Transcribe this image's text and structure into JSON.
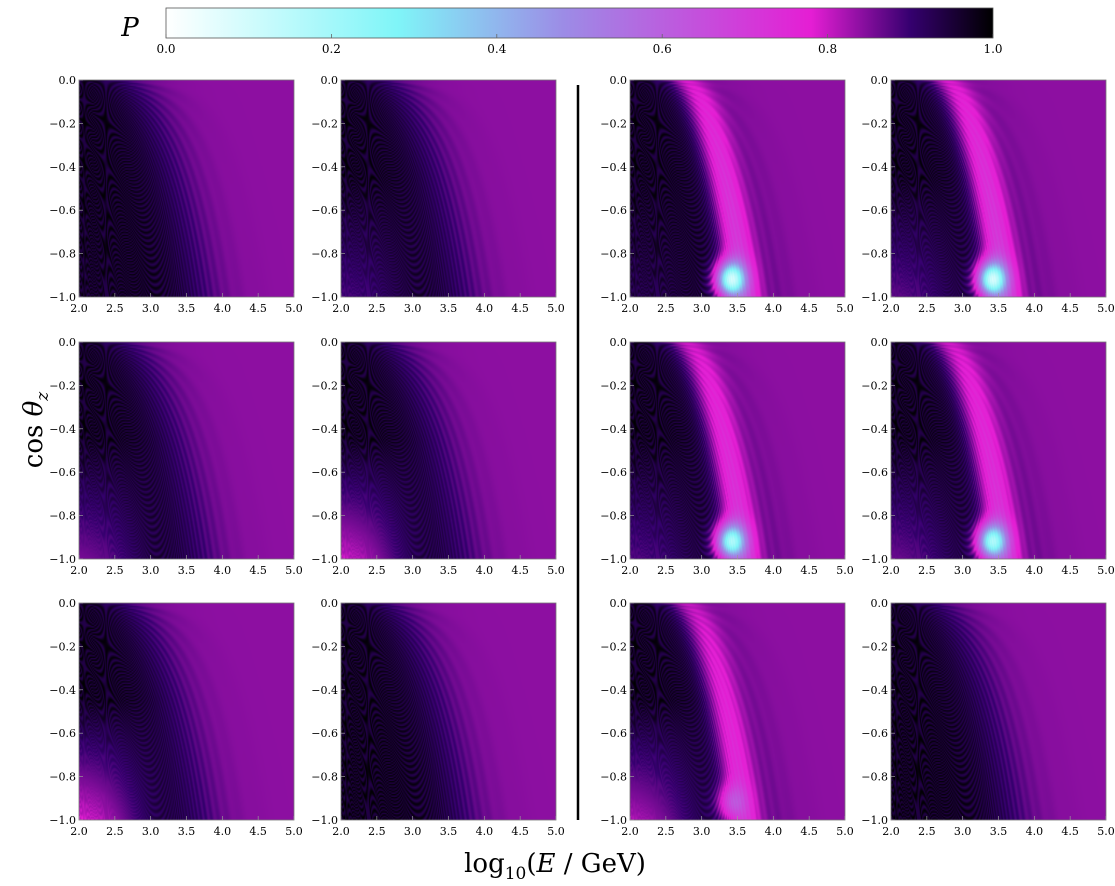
{
  "chart_data": {
    "type": "heatmap",
    "colorbar": {
      "label": "P",
      "ticks": [
        "0.0",
        "0.2",
        "0.4",
        "0.6",
        "0.8",
        "1.0"
      ],
      "range": [
        0,
        1
      ],
      "colors": [
        "#ffffff",
        "#7ff5f8",
        "#9c8ce6",
        "#e51ed4",
        "#35006f",
        "#000000"
      ]
    },
    "xlabel": "log₁₀(E / GeV)",
    "ylabel": "cos θz",
    "xlabel_parts": {
      "pre": "log",
      "sub": "10",
      "open": "(",
      "var": "E",
      "post": " / GeV)"
    },
    "ylabel_parts": {
      "pre": "cos ",
      "var": "θ",
      "sub": "z"
    },
    "x_ticks": [
      "2.0",
      "2.5",
      "3.0",
      "3.5",
      "4.0",
      "4.5",
      "5.0"
    ],
    "y_ticks": [
      "0.0",
      "-0.2",
      "-0.4",
      "-0.6",
      "-0.8",
      "-1.0"
    ],
    "xlim": [
      2.0,
      5.0
    ],
    "ylim": [
      -1.0,
      0.0
    ],
    "layout": {
      "rows": 3,
      "cols": 4,
      "separator_after_col": 2
    },
    "panels": [
      {
        "row": 1,
        "col": 1,
        "lowE_pink": 0.05,
        "resonance": 0.0,
        "band_pink": 0.0
      },
      {
        "row": 1,
        "col": 2,
        "lowE_pink": 0.45,
        "resonance": 0.0,
        "band_pink": 0.0
      },
      {
        "row": 1,
        "col": 3,
        "lowE_pink": 0.2,
        "resonance": 1.0,
        "band_pink": 1.0
      },
      {
        "row": 1,
        "col": 4,
        "lowE_pink": 0.55,
        "resonance": 1.0,
        "band_pink": 1.0
      },
      {
        "row": 2,
        "col": 1,
        "lowE_pink": 0.65,
        "resonance": 0.0,
        "band_pink": 0.0
      },
      {
        "row": 2,
        "col": 2,
        "lowE_pink": 0.95,
        "resonance": 0.0,
        "band_pink": 0.0
      },
      {
        "row": 2,
        "col": 3,
        "lowE_pink": 0.5,
        "resonance": 0.9,
        "band_pink": 0.9
      },
      {
        "row": 2,
        "col": 4,
        "lowE_pink": 0.6,
        "resonance": 0.9,
        "band_pink": 0.9
      },
      {
        "row": 3,
        "col": 1,
        "lowE_pink": 1.0,
        "resonance": 0.0,
        "band_pink": 0.0
      },
      {
        "row": 3,
        "col": 2,
        "lowE_pink": 0.0,
        "resonance": 0.0,
        "band_pink": 0.0
      },
      {
        "row": 3,
        "col": 3,
        "lowE_pink": 0.85,
        "resonance": 0.25,
        "band_pink": 0.8
      },
      {
        "row": 3,
        "col": 4,
        "lowE_pink": 0.0,
        "resonance": 0.0,
        "band_pink": 0.0
      }
    ]
  }
}
